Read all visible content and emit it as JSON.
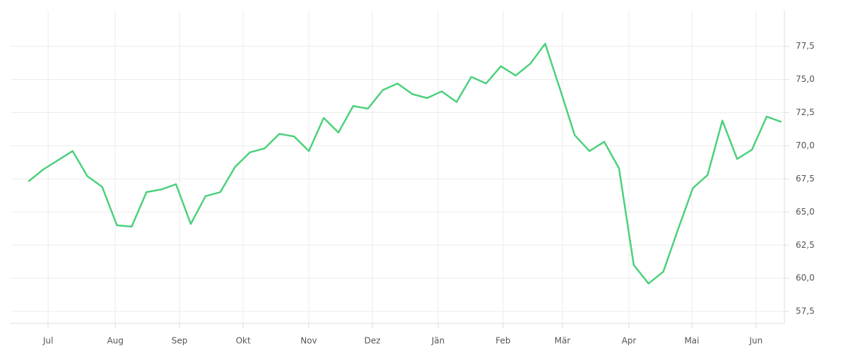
{
  "chart_data": {
    "type": "line",
    "x": [
      0,
      1,
      2,
      3,
      4,
      5,
      6,
      7,
      8,
      9,
      10,
      11,
      12,
      13,
      14,
      15,
      16,
      17,
      18,
      19,
      20,
      21,
      22,
      23,
      24,
      25,
      26,
      27,
      28,
      29,
      30,
      31,
      32,
      33,
      34,
      35,
      36,
      37,
      38,
      39,
      40,
      41,
      42,
      43,
      44,
      45,
      46,
      47,
      48,
      49,
      50,
      51
    ],
    "series": [
      {
        "color": "#4cd07d",
        "values": [
          67.3,
          68.2,
          68.9,
          69.6,
          67.7,
          66.9,
          64.0,
          63.9,
          66.5,
          66.7,
          67.1,
          64.1,
          66.2,
          66.5,
          68.4,
          69.5,
          69.8,
          70.9,
          70.7,
          69.6,
          72.1,
          71.0,
          73.0,
          72.8,
          74.2,
          74.7,
          73.9,
          73.6,
          74.1,
          73.3,
          75.2,
          74.7,
          76.0,
          75.3,
          76.2,
          77.7,
          74.3,
          70.8,
          69.6,
          70.3,
          68.3,
          61.0,
          59.6,
          60.5,
          63.7,
          66.8,
          67.8,
          71.9,
          69.0,
          69.7,
          72.2,
          71.8
        ]
      }
    ],
    "xlim": [
      -1.2,
      51.2
    ],
    "xticks": [
      {
        "value": 1.34,
        "label": "Jul"
      },
      {
        "value": 5.89,
        "label": "Aug"
      },
      {
        "value": 10.24,
        "label": "Sep"
      },
      {
        "value": 14.55,
        "label": "Okt"
      },
      {
        "value": 18.99,
        "label": "Nov"
      },
      {
        "value": 23.3,
        "label": "Dez"
      },
      {
        "value": 27.75,
        "label": "Jän"
      },
      {
        "value": 32.15,
        "label": "Feb"
      },
      {
        "value": 36.17,
        "label": "Mär"
      },
      {
        "value": 40.67,
        "label": "Apr"
      },
      {
        "value": 44.93,
        "label": "Mai"
      },
      {
        "value": 49.28,
        "label": "Jun"
      }
    ],
    "ylim": [
      56.6,
      80.2
    ],
    "yticks": [
      {
        "value": 57.5,
        "label": "57,5"
      },
      {
        "value": 60,
        "label": "60,0"
      },
      {
        "value": 62.5,
        "label": "62,5"
      },
      {
        "value": 65,
        "label": "65,0"
      },
      {
        "value": 67.5,
        "label": "67,5"
      },
      {
        "value": 70,
        "label": "70,0"
      },
      {
        "value": 72.5,
        "label": "72,5"
      },
      {
        "value": 75,
        "label": "75,0"
      },
      {
        "value": 77.5,
        "label": "77,5"
      }
    ],
    "grid": true
  }
}
